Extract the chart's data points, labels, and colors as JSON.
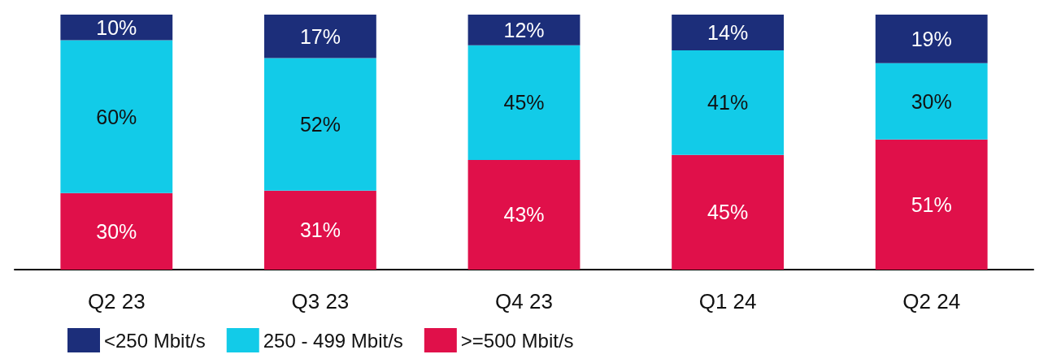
{
  "chart_data": {
    "type": "bar",
    "stacked": true,
    "legend": "bottom left",
    "categories": [
      "Q2 23",
      "Q3 23",
      "Q4 23",
      "Q1 24",
      "Q2 24"
    ],
    "series": [
      {
        "name": ">=500 Mbit/s",
        "color": "#e0104a",
        "values": [
          30,
          31,
          43,
          45,
          51
        ],
        "value_labels": [
          "30%",
          "31%",
          "43%",
          "45%",
          "51%"
        ]
      },
      {
        "name": "250 - 499 Mbit/s",
        "color": "#12cbe8",
        "values": [
          60,
          52,
          45,
          41,
          30
        ],
        "value_labels": [
          "60%",
          "52%",
          "45%",
          "41%",
          "30%"
        ]
      },
      {
        "name": "<250 Mbit/s",
        "color": "#1c2e7a",
        "values": [
          10,
          17,
          12,
          14,
          19
        ],
        "value_labels": [
          "10%",
          "17%",
          "12%",
          "14%",
          "19%"
        ]
      }
    ]
  }
}
